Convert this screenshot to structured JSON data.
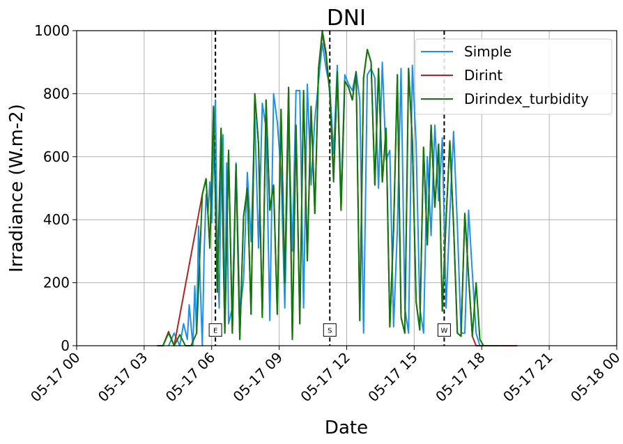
{
  "chart_data": {
    "type": "line",
    "title": "DNI",
    "xlabel": "Date",
    "ylabel": "Irradiance (W.m-2)",
    "xlim": [
      "05-17 00:00",
      "05-18 00:00"
    ],
    "ylim": [
      0,
      1000
    ],
    "x_ticks": [
      "05-17 00",
      "05-17 03",
      "05-17 06",
      "05-17 09",
      "05-17 12",
      "05-17 15",
      "05-17 18",
      "05-17 21",
      "05-18 00"
    ],
    "y_ticks": [
      0,
      200,
      400,
      600,
      800,
      1000
    ],
    "grid": true,
    "legend_position": "top-right",
    "vertical_markers": [
      {
        "label": "E",
        "x": "06:10"
      },
      {
        "label": "S",
        "x": "11:15"
      },
      {
        "label": "W",
        "x": "16:20"
      }
    ],
    "series": [
      {
        "name": "Simple",
        "color": "#1f8fee",
        "x": [
          "04:05",
          "04:20",
          "04:35",
          "04:45",
          "04:55",
          "05:00",
          "05:10",
          "05:15",
          "05:20",
          "05:25",
          "05:30",
          "05:35",
          "05:40",
          "05:45",
          "05:50",
          "05:55",
          "06:00",
          "06:05",
          "06:10",
          "06:15",
          "06:20",
          "06:25",
          "06:30",
          "06:35",
          "06:40",
          "06:45",
          "06:55",
          "07:05",
          "07:15",
          "07:25",
          "07:35",
          "07:45",
          "07:55",
          "08:05",
          "08:15",
          "08:25",
          "08:35",
          "08:45",
          "08:55",
          "09:05",
          "09:15",
          "09:25",
          "09:35",
          "09:45",
          "09:55",
          "10:05",
          "10:15",
          "10:25",
          "10:35",
          "10:45",
          "10:55",
          "11:05",
          "11:15",
          "11:25",
          "11:35",
          "11:45",
          "11:55",
          "12:05",
          "12:15",
          "12:25",
          "12:35",
          "12:45",
          "12:55",
          "13:05",
          "13:15",
          "13:25",
          "13:35",
          "13:45",
          "13:55",
          "14:05",
          "14:15",
          "14:25",
          "14:35",
          "14:45",
          "14:55",
          "15:05",
          "15:15",
          "15:25",
          "15:35",
          "15:45",
          "15:55",
          "16:05",
          "16:15",
          "16:25",
          "16:35",
          "16:45",
          "16:55",
          "17:05",
          "17:15",
          "17:25",
          "17:35",
          "17:45",
          "17:55",
          "18:05",
          "18:15",
          "18:25",
          "18:40",
          "19:00"
        ],
        "y": [
          0,
          40,
          0,
          70,
          20,
          130,
          0,
          190,
          40,
          380,
          180,
          0,
          300,
          480,
          420,
          520,
          390,
          600,
          780,
          320,
          120,
          540,
          670,
          60,
          580,
          70,
          120,
          580,
          100,
          210,
          550,
          330,
          730,
          310,
          770,
          690,
          80,
          800,
          710,
          550,
          120,
          720,
          300,
          810,
          810,
          120,
          830,
          510,
          720,
          840,
          960,
          880,
          820,
          610,
          890,
          460,
          860,
          830,
          810,
          870,
          780,
          40,
          860,
          880,
          850,
          500,
          900,
          590,
          620,
          60,
          370,
          880,
          120,
          40,
          890,
          640,
          120,
          40,
          600,
          350,
          700,
          460,
          660,
          120,
          420,
          680,
          380,
          40,
          40,
          430,
          230,
          40,
          0,
          0,
          0,
          0,
          0,
          0
        ]
      },
      {
        "name": "Dirint",
        "color": "#b22222",
        "x": [
          "03:35",
          "03:50",
          "04:05",
          "04:20",
          "05:35",
          "05:45",
          "05:55",
          "06:05",
          "06:15",
          "06:25",
          "06:35",
          "06:45",
          "06:55",
          "07:05",
          "07:15",
          "07:25",
          "07:35",
          "07:45",
          "07:55",
          "08:05",
          "08:15",
          "08:25",
          "08:35",
          "08:45",
          "08:55",
          "09:05",
          "09:15",
          "09:25",
          "09:35",
          "09:45",
          "09:55",
          "10:05",
          "10:15",
          "10:25",
          "10:35",
          "10:45",
          "10:55",
          "11:05",
          "11:15",
          "11:25",
          "11:35",
          "11:45",
          "11:55",
          "12:05",
          "12:15",
          "12:25",
          "12:35",
          "12:45",
          "12:55",
          "13:05",
          "13:15",
          "13:25",
          "13:35",
          "13:45",
          "13:55",
          "14:05",
          "14:15",
          "14:25",
          "14:35",
          "14:45",
          "14:55",
          "15:05",
          "15:15",
          "15:25",
          "15:35",
          "15:45",
          "15:55",
          "16:05",
          "16:15",
          "16:25",
          "16:35",
          "16:45",
          "16:55",
          "17:05",
          "17:15",
          "17:25",
          "17:35",
          "17:45",
          "17:55",
          "18:05",
          "18:20",
          "18:35",
          "18:50",
          "19:05",
          "19:20",
          "19:35"
        ],
        "y": [
          0,
          0,
          45,
          0,
          480,
          530,
          310,
          760,
          170,
          690,
          40,
          620,
          40,
          575,
          20,
          410,
          500,
          100,
          800,
          640,
          90,
          780,
          430,
          510,
          100,
          750,
          200,
          820,
          20,
          700,
          70,
          810,
          270,
          760,
          420,
          880,
          990,
          920,
          800,
          530,
          860,
          430,
          840,
          820,
          780,
          870,
          80,
          850,
          940,
          900,
          510,
          880,
          520,
          690,
          60,
          370,
          860,
          90,
          40,
          880,
          650,
          140,
          50,
          630,
          320,
          700,
          440,
          640,
          110,
          400,
          650,
          380,
          40,
          30,
          420,
          220,
          30,
          0,
          0,
          0,
          0,
          0,
          0,
          0,
          0,
          0
        ]
      },
      {
        "name": "Dirindex_turbidity",
        "color": "#0a7a0a",
        "x": [
          "03:35",
          "03:50",
          "04:05",
          "04:20",
          "04:35",
          "04:50",
          "05:05",
          "05:20",
          "05:35",
          "05:45",
          "05:55",
          "06:05",
          "06:15",
          "06:25",
          "06:35",
          "06:45",
          "06:55",
          "07:05",
          "07:15",
          "07:25",
          "07:35",
          "07:45",
          "07:55",
          "08:05",
          "08:15",
          "08:25",
          "08:35",
          "08:45",
          "08:55",
          "09:05",
          "09:15",
          "09:25",
          "09:35",
          "09:45",
          "09:55",
          "10:05",
          "10:15",
          "10:25",
          "10:35",
          "10:45",
          "10:55",
          "11:05",
          "11:15",
          "11:25",
          "11:35",
          "11:45",
          "11:55",
          "12:05",
          "12:15",
          "12:25",
          "12:35",
          "12:45",
          "12:55",
          "13:05",
          "13:15",
          "13:25",
          "13:35",
          "13:45",
          "13:55",
          "14:05",
          "14:15",
          "14:25",
          "14:35",
          "14:45",
          "14:55",
          "15:05",
          "15:15",
          "15:25",
          "15:35",
          "15:45",
          "15:55",
          "16:05",
          "16:15",
          "16:25",
          "16:35",
          "16:45",
          "16:55",
          "17:05",
          "17:15",
          "17:25",
          "17:35",
          "17:45",
          "17:55",
          "18:05",
          "18:20",
          "18:35",
          "18:50"
        ],
        "y": [
          0,
          0,
          40,
          0,
          35,
          0,
          0,
          40,
          480,
          530,
          310,
          760,
          170,
          690,
          40,
          620,
          40,
          575,
          20,
          410,
          500,
          100,
          800,
          640,
          90,
          780,
          430,
          510,
          100,
          750,
          200,
          820,
          20,
          700,
          70,
          810,
          270,
          760,
          420,
          880,
          1000,
          930,
          800,
          520,
          870,
          430,
          840,
          820,
          780,
          870,
          80,
          850,
          940,
          900,
          510,
          880,
          520,
          690,
          60,
          370,
          860,
          90,
          40,
          880,
          650,
          140,
          50,
          630,
          320,
          700,
          440,
          640,
          110,
          400,
          650,
          380,
          40,
          30,
          420,
          220,
          30,
          200,
          20,
          0,
          0,
          0,
          0
        ]
      }
    ]
  }
}
